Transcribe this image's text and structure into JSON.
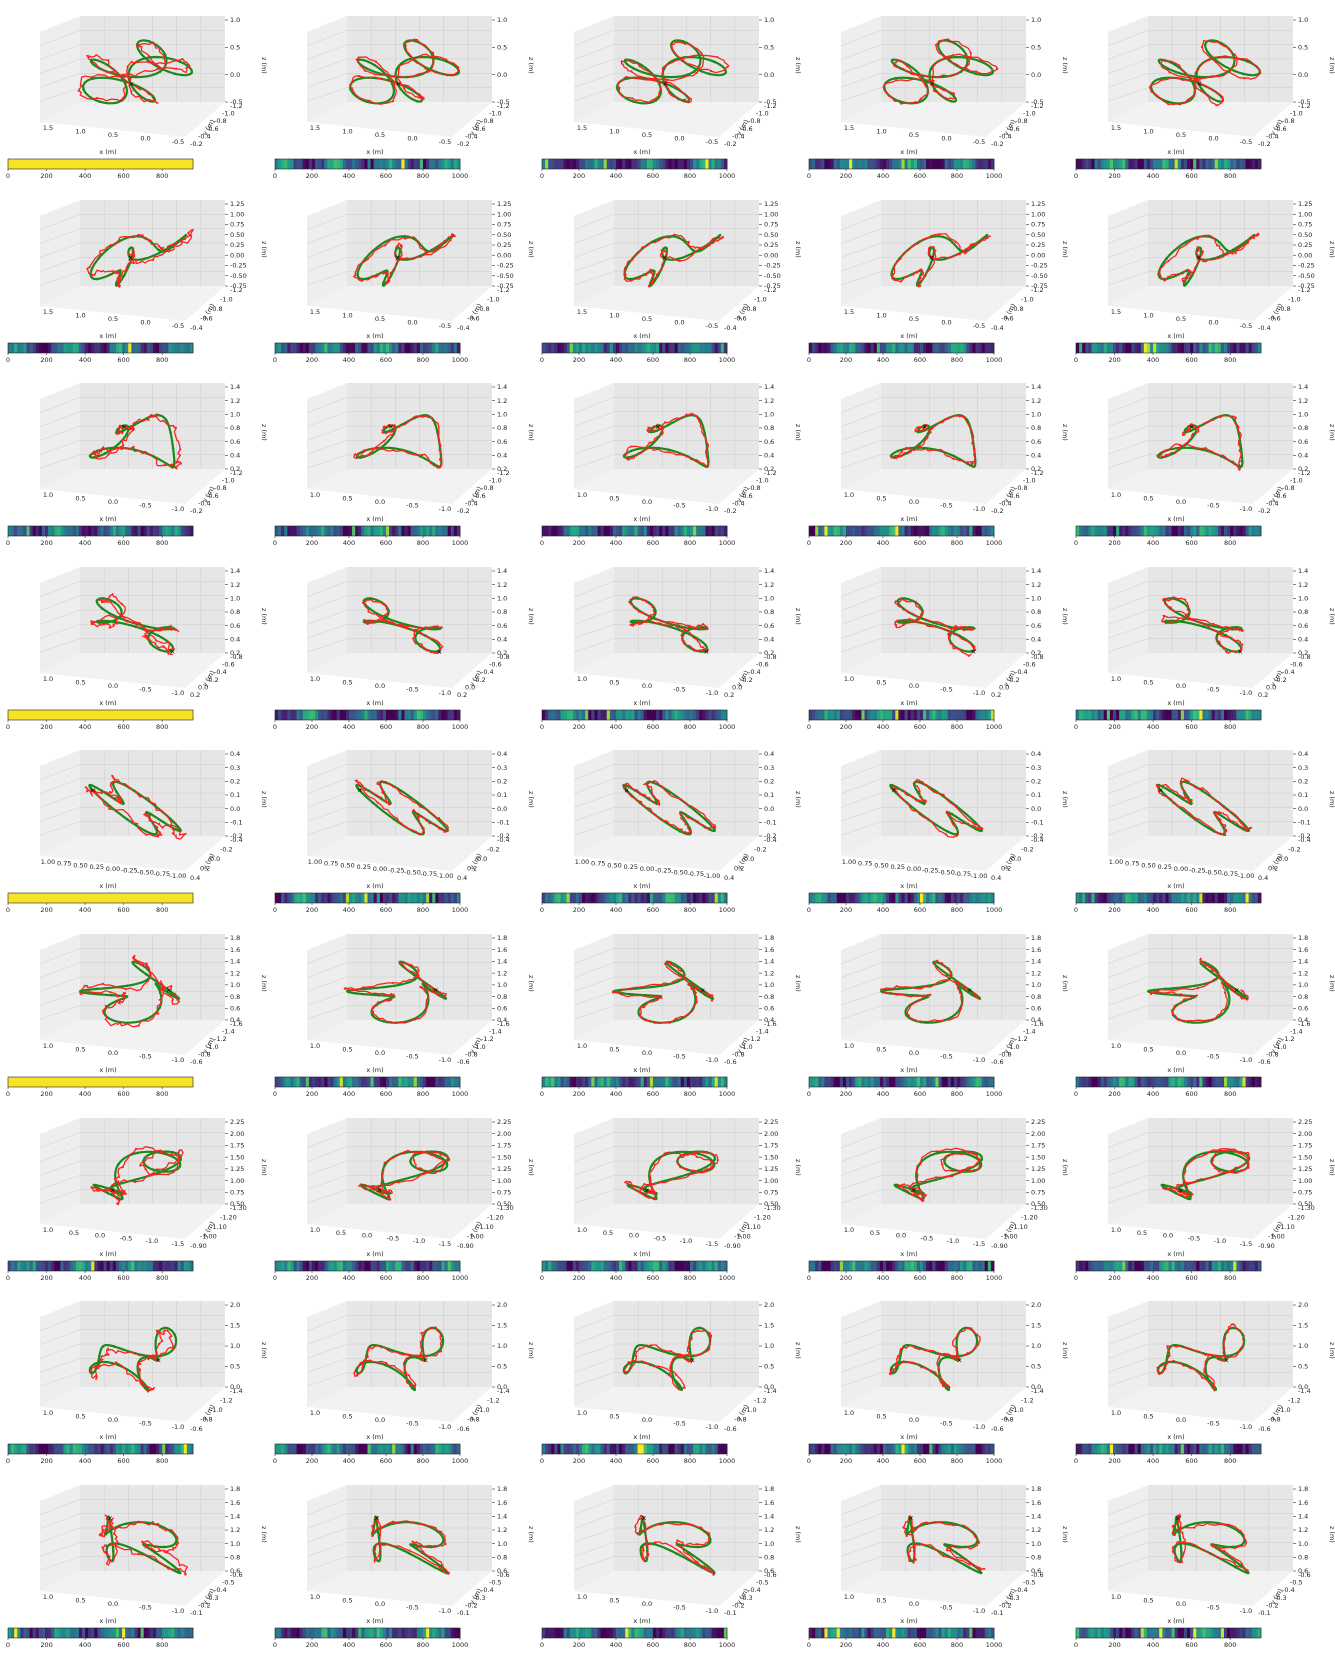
{
  "figure": {
    "rows": 9,
    "cols": 5,
    "background": "#ffffff",
    "colors": {
      "prediction": "#ff2020",
      "ground_truth": "#1a8a1a",
      "start_marker": "#000000",
      "pane": "#eeeeee",
      "grid": "#cccccc",
      "colormap": "viridis"
    },
    "axis_labels": {
      "x": "x (m)",
      "y": "y (m)",
      "z": "z (m)"
    }
  },
  "rows": [
    {
      "z_ticks": [
        "1.0",
        "0.5",
        "0.0",
        "-0.5"
      ],
      "x_ticks": [
        "1.5",
        "1.0",
        "0.5",
        "0.0",
        "-0.5"
      ],
      "y_ticks": [
        "-1.2",
        "-1.0",
        "-0.8",
        "-0.6",
        "-0.4",
        "-0.2"
      ],
      "bar_ticks": [
        [
          "0",
          "200",
          "400",
          "600",
          "800"
        ],
        [
          "0",
          "200",
          "400",
          "600",
          "800",
          "1000"
        ],
        [
          "0",
          "200",
          "400",
          "600",
          "800",
          "1000"
        ],
        [
          "0",
          "200",
          "400",
          "600",
          "800",
          "1000"
        ],
        [
          "0",
          "200",
          "400",
          "600",
          "800"
        ]
      ]
    },
    {
      "z_ticks": [
        "1.25",
        "1.00",
        "0.75",
        "0.50",
        "0.25",
        "0.00",
        "-0.25",
        "-0.50",
        "-0.75"
      ],
      "x_ticks": [
        "1.5",
        "1.0",
        "0.5",
        "0.0",
        "-0.5"
      ],
      "y_ticks": [
        "-1.2",
        "-1.0",
        "-0.8",
        "-0.6",
        "-0.4"
      ],
      "bar_ticks": [
        [
          "0",
          "200",
          "400",
          "600",
          "800"
        ],
        [
          "0",
          "200",
          "400",
          "600",
          "800",
          "1000"
        ],
        [
          "0",
          "200",
          "400",
          "600",
          "800",
          "1000"
        ],
        [
          "0",
          "200",
          "400",
          "600",
          "800",
          "1000"
        ],
        [
          "0",
          "200",
          "400",
          "600",
          "800"
        ]
      ]
    },
    {
      "z_ticks": [
        "1.4",
        "1.2",
        "1.0",
        "0.8",
        "0.6",
        "0.4",
        "0.2"
      ],
      "x_ticks": [
        "1.0",
        "0.5",
        "0.0",
        "-0.5",
        "-1.0"
      ],
      "y_ticks": [
        "-1.2",
        "-1.0",
        "-0.8",
        "-0.6",
        "-0.4",
        "-0.2"
      ],
      "bar_ticks": [
        [
          "0",
          "200",
          "400",
          "600",
          "800"
        ],
        [
          "0",
          "200",
          "400",
          "600",
          "800",
          "1000"
        ],
        [
          "0",
          "200",
          "400",
          "600",
          "800",
          "1000"
        ],
        [
          "0",
          "200",
          "400",
          "600",
          "800",
          "1000"
        ],
        [
          "0",
          "200",
          "400",
          "600",
          "800"
        ]
      ]
    },
    {
      "z_ticks": [
        "1.4",
        "1.2",
        "1.0",
        "0.8",
        "0.6",
        "0.4",
        "0.2"
      ],
      "x_ticks": [
        "1.0",
        "0.5",
        "0.0",
        "-0.5",
        "-1.0"
      ],
      "y_ticks": [
        "-0.8",
        "-0.6",
        "-0.4",
        "-0.2",
        "0.0",
        "0.2"
      ],
      "bar_ticks": [
        [
          "0",
          "200",
          "400",
          "600",
          "800"
        ],
        [
          "0",
          "200",
          "400",
          "600",
          "800",
          "1000"
        ],
        [
          "0",
          "200",
          "400",
          "600",
          "800",
          "1000"
        ],
        [
          "0",
          "200",
          "400",
          "600",
          "800",
          "1000"
        ],
        [
          "0",
          "200",
          "400",
          "600",
          "800"
        ]
      ]
    },
    {
      "z_ticks": [
        "0.4",
        "0.3",
        "0.2",
        "0.1",
        "0.0",
        "-0.1",
        "-0.2"
      ],
      "x_ticks": [
        "1.00",
        "0.75",
        "0.50",
        "0.25",
        "0.00",
        "-0.25",
        "-0.50",
        "-0.75",
        "-1.00"
      ],
      "y_ticks": [
        "-0.4",
        "-0.2",
        "0.0",
        "0.2",
        "0.4"
      ],
      "bar_ticks": [
        [
          "0",
          "200",
          "400",
          "600",
          "800"
        ],
        [
          "0",
          "200",
          "400",
          "600",
          "800",
          "1000"
        ],
        [
          "0",
          "200",
          "400",
          "600",
          "800",
          "1000"
        ],
        [
          "0",
          "200",
          "400",
          "600",
          "800",
          "1000"
        ],
        [
          "0",
          "200",
          "400",
          "600",
          "800"
        ]
      ]
    },
    {
      "z_ticks": [
        "1.8",
        "1.6",
        "1.4",
        "1.2",
        "1.0",
        "0.8",
        "0.6",
        "0.4"
      ],
      "x_ticks": [
        "1.0",
        "0.5",
        "0.0",
        "-0.5",
        "-1.0"
      ],
      "y_ticks": [
        "-1.6",
        "-1.4",
        "-1.2",
        "-1.0",
        "-0.8",
        "-0.6"
      ],
      "bar_ticks": [
        [
          "0",
          "200",
          "400",
          "600",
          "800"
        ],
        [
          "0",
          "200",
          "400",
          "600",
          "800",
          "1000"
        ],
        [
          "0",
          "200",
          "400",
          "600",
          "800",
          "1000"
        ],
        [
          "0",
          "200",
          "400",
          "600",
          "800",
          "1000"
        ],
        [
          "0",
          "200",
          "400",
          "600",
          "800"
        ]
      ]
    },
    {
      "z_ticks": [
        "2.25",
        "2.00",
        "1.75",
        "1.50",
        "1.25",
        "1.00",
        "0.75",
        "0.50"
      ],
      "x_ticks": [
        "1.0",
        "0.5",
        "0.0",
        "-0.5",
        "-1.0",
        "-1.5"
      ],
      "y_ticks": [
        "-1.30",
        "-1.20",
        "-1.10",
        "-1.00",
        "-0.90"
      ],
      "bar_ticks": [
        [
          "0",
          "200",
          "400",
          "600",
          "800"
        ],
        [
          "0",
          "200",
          "400",
          "600",
          "800",
          "1000"
        ],
        [
          "0",
          "200",
          "400",
          "600",
          "800",
          "1000"
        ],
        [
          "0",
          "200",
          "400",
          "600",
          "800",
          "1000"
        ],
        [
          "0",
          "200",
          "400",
          "600",
          "800"
        ]
      ]
    },
    {
      "z_ticks": [
        "2.0",
        "1.5",
        "1.0",
        "0.5",
        "0.0"
      ],
      "x_ticks": [
        "1.0",
        "0.5",
        "0.0",
        "-0.5",
        "-1.0"
      ],
      "y_ticks": [
        "-1.4",
        "-1.2",
        "-1.0",
        "-0.8",
        "-0.6"
      ],
      "bar_ticks": [
        [
          "0",
          "200",
          "400",
          "600",
          "800"
        ],
        [
          "0",
          "200",
          "400",
          "600",
          "800",
          "1000"
        ],
        [
          "0",
          "200",
          "400",
          "600",
          "800",
          "1000"
        ],
        [
          "0",
          "200",
          "400",
          "600",
          "800",
          "1000"
        ],
        [
          "0",
          "200",
          "400",
          "600",
          "800"
        ]
      ]
    },
    {
      "z_ticks": [
        "1.8",
        "1.6",
        "1.4",
        "1.2",
        "1.0",
        "0.8",
        "0.6"
      ],
      "x_ticks": [
        "1.0",
        "0.5",
        "0.0",
        "-0.5",
        "-1.0"
      ],
      "y_ticks": [
        "-0.6",
        "-0.5",
        "-0.4",
        "-0.3",
        "-0.2",
        "-0.1"
      ],
      "bar_ticks": [
        [
          "0",
          "200",
          "400",
          "600",
          "800"
        ],
        [
          "0",
          "200",
          "400",
          "600",
          "800",
          "1000"
        ],
        [
          "0",
          "200",
          "400",
          "600",
          "800",
          "1000"
        ],
        [
          "0",
          "200",
          "400",
          "600",
          "800",
          "1000"
        ],
        [
          "0",
          "200",
          "400",
          "600",
          "800"
        ]
      ]
    }
  ],
  "chart_data": {
    "type": "scatter",
    "description_free": true,
    "panels_per_row": 5,
    "panels": [
      {
        "row": 0,
        "cols_yellow_bar": [
          0
        ],
        "viridis_bars": [
          1,
          2,
          3,
          4
        ]
      },
      {
        "row": 1,
        "viridis_bars": [
          0,
          1,
          2,
          3,
          4
        ]
      },
      {
        "row": 2,
        "viridis_bars": [
          0,
          1,
          2,
          3,
          4
        ]
      },
      {
        "row": 3,
        "cols_yellow_bar": [
          0
        ],
        "viridis_bars": [
          1,
          2,
          3,
          4
        ]
      },
      {
        "row": 4,
        "cols_yellow_bar": [
          0
        ],
        "viridis_bars": [
          1,
          2,
          3,
          4
        ]
      },
      {
        "row": 5,
        "cols_yellow_bar": [
          0
        ],
        "viridis_bars": [
          1,
          2,
          3,
          4
        ]
      },
      {
        "row": 6,
        "viridis_bars": [
          0,
          1,
          2,
          3,
          4
        ]
      },
      {
        "row": 7,
        "viridis_bars": [
          0,
          1,
          2,
          3,
          4
        ]
      },
      {
        "row": 8,
        "viridis_bars": [
          0,
          1,
          2,
          3,
          4
        ]
      }
    ]
  }
}
